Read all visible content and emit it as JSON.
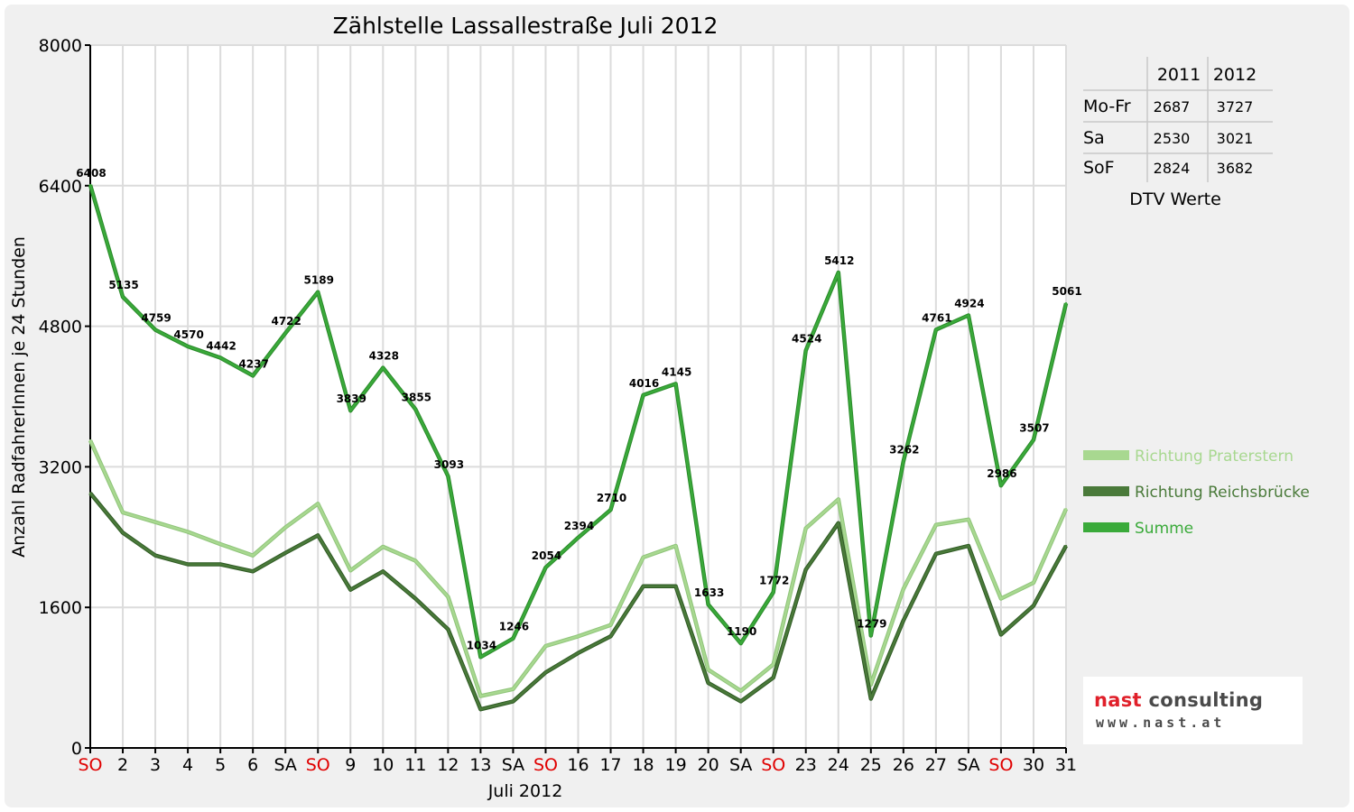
{
  "chart_data": {
    "type": "line",
    "title": "Zählstelle Lassallestraße Juli 2012",
    "xlabel": "Juli 2012",
    "ylabel": "Anzahl RadfahrerInnen je 24 Stunden",
    "ylim": [
      0,
      8000
    ],
    "yticks": [
      "0",
      "1600",
      "3200",
      "4800",
      "6400",
      "8000"
    ],
    "grid": true,
    "legend_position": "right",
    "categories": [
      "SO",
      "2",
      "3",
      "4",
      "5",
      "6",
      "SA",
      "SO",
      "9",
      "10",
      "11",
      "12",
      "13",
      "SA",
      "SO",
      "16",
      "17",
      "18",
      "19",
      "20",
      "SA",
      "SO",
      "23",
      "24",
      "25",
      "26",
      "27",
      "SA",
      "SO",
      "30",
      "31"
    ],
    "highlight_categories": [
      "SO"
    ],
    "highlight_color": "#e00000",
    "series": [
      {
        "name": "Richtung Praterstern",
        "color": "#a8d890",
        "values": [
          3500,
          2680,
          2570,
          2460,
          2320,
          2190,
          2510,
          2780,
          2020,
          2290,
          2130,
          1720,
          590,
          670,
          1160,
          1270,
          1400,
          2170,
          2300,
          890,
          650,
          950,
          2500,
          2830,
          720,
          1810,
          2540,
          2600,
          1700,
          1880,
          2720
        ]
      },
      {
        "name": "Richtung Reichsbrücke",
        "color": "#4a7a3a",
        "values": [
          2900,
          2450,
          2190,
          2090,
          2090,
          2010,
          2220,
          2420,
          1800,
          2010,
          1700,
          1350,
          440,
          530,
          860,
          1080,
          1270,
          1840,
          1840,
          740,
          530,
          800,
          2030,
          2560,
          560,
          1450,
          2210,
          2300,
          1290,
          1620,
          2300
        ]
      },
      {
        "name": "Summe",
        "color": "#3aaa3a",
        "values": [
          6408,
          5135,
          4759,
          4570,
          4442,
          4237,
          4722,
          5189,
          3839,
          4328,
          3855,
          3093,
          1034,
          1246,
          2054,
          2394,
          2710,
          4016,
          4145,
          1633,
          1190,
          1772,
          4524,
          5412,
          1279,
          3262,
          4761,
          4924,
          2986,
          3507,
          5061
        ]
      }
    ],
    "data_labels": [
      "6408",
      "5135",
      "4759",
      "4570",
      "4442",
      "4237",
      "4722",
      "5189",
      "3839",
      "4328",
      "3855",
      "3093",
      "1034",
      "1246",
      "2054",
      "2394",
      "2710",
      "4016",
      "4145",
      "1633",
      "1190",
      "1772",
      "4524",
      "5412",
      "1279",
      "3262",
      "4761",
      "4924",
      "2986",
      "3507",
      "5061"
    ]
  },
  "dtv_table": {
    "headers": [
      "",
      "2011",
      "2012"
    ],
    "rows": [
      {
        "label": "Mo-Fr",
        "v2011": "2687",
        "v2012": "3727"
      },
      {
        "label": "Sa",
        "v2011": "2530",
        "v2012": "3021"
      },
      {
        "label": "SoF",
        "v2011": "2824",
        "v2012": "3682"
      }
    ],
    "caption": "DTV Werte"
  },
  "logo": {
    "line1_part1": "nast",
    "line1_part2": " consulting",
    "line2": "www.nast.at",
    "accent_color": "#e0202a"
  }
}
